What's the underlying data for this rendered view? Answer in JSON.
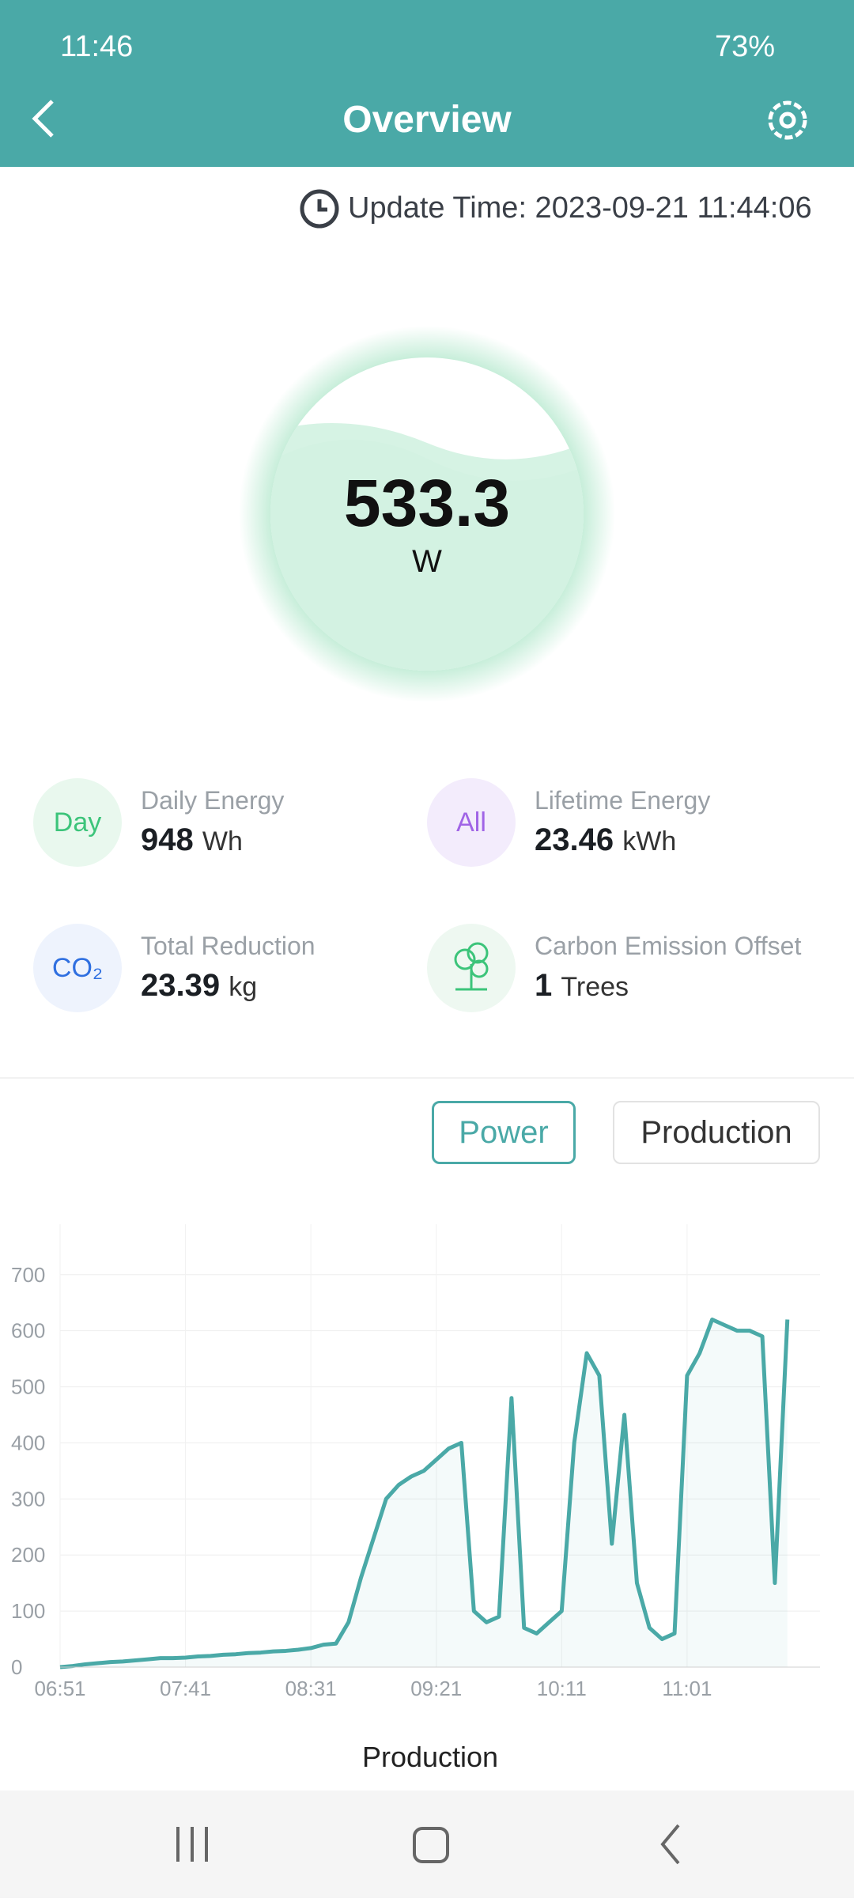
{
  "status_bar": {
    "time": "11:46",
    "battery": "73%"
  },
  "header": {
    "title": "Overview"
  },
  "update_time": "Update Time: 2023-09-21 11:44:06",
  "gauge": {
    "value": 533.3,
    "unit": "W"
  },
  "stats": [
    {
      "icon": "Day",
      "label": "Daily Energy",
      "value": 948,
      "unit": "Wh"
    },
    {
      "icon": "All",
      "label": "Lifetime Energy",
      "value": 23.46,
      "unit": "kWh"
    },
    {
      "icon": "CO₂",
      "label": "Total Reduction",
      "value": 23.39,
      "unit": "kg"
    },
    {
      "label": "Carbon Emission Offset",
      "value": 1,
      "unit": "Trees"
    }
  ],
  "buttons": [
    "Power",
    "Production"
  ],
  "chart_data": {
    "type": "line",
    "categories": [
      "06:51",
      null,
      null,
      null,
      null,
      null,
      null,
      null,
      null,
      null,
      "07:41",
      null,
      null,
      null,
      null,
      null,
      null,
      null,
      null,
      null,
      "08:31",
      null,
      null,
      null,
      null,
      null,
      null,
      null,
      null,
      null,
      "09:21",
      null,
      null,
      null,
      null,
      null,
      null,
      null,
      null,
      null,
      "10:11",
      null,
      null,
      null,
      null,
      null,
      null,
      null,
      null,
      null,
      "11:01",
      null,
      null,
      null,
      null,
      null,
      null,
      null,
      null
    ],
    "series": [
      {
        "name": "Production",
        "color": "#4aa9a7",
        "values": [
          0,
          2,
          5,
          7,
          9,
          10,
          12,
          14,
          16,
          16,
          17,
          19,
          20,
          22,
          23,
          25,
          26,
          28,
          29,
          31,
          34,
          40,
          42,
          80,
          160,
          230,
          300,
          325,
          340,
          350,
          370,
          390,
          400,
          100,
          80,
          90,
          480,
          70,
          60,
          80,
          100,
          400,
          560,
          520,
          220,
          450,
          150,
          70,
          50,
          60,
          520,
          560,
          620,
          610,
          600,
          600,
          590,
          150,
          620
        ]
      }
    ],
    "ylim": [
      0,
      790
    ],
    "yticks": [
      0,
      100,
      200,
      300,
      400,
      500,
      600,
      700
    ],
    "grid": true
  }
}
